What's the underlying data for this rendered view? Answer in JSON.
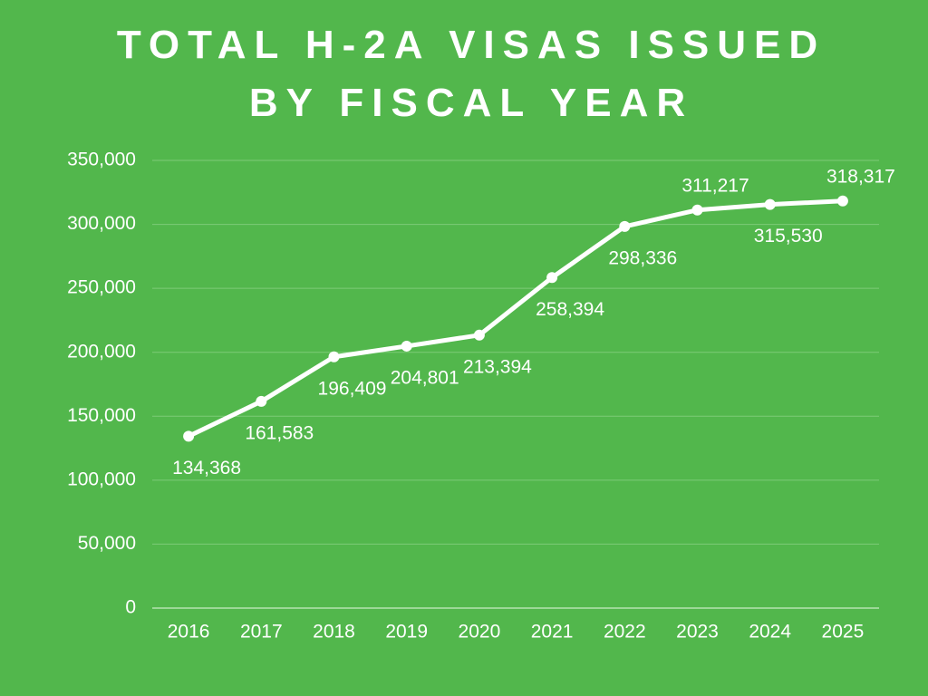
{
  "chart_data": {
    "type": "line",
    "title": "TOTAL H-2A VISAS ISSUED BY FISCAL YEAR",
    "categories": [
      "2016",
      "2017",
      "2018",
      "2019",
      "2020",
      "2021",
      "2022",
      "2023",
      "2024",
      "2025"
    ],
    "values": [
      134368,
      161583,
      196409,
      204801,
      213394,
      258394,
      298336,
      311217,
      315530,
      318317
    ],
    "value_labels": [
      "134,368",
      "161,583",
      "196,409",
      "204,801",
      "213,394",
      "258,394",
      "298,336",
      "311,217",
      "315,530",
      "318,317"
    ],
    "color": "#ffffff",
    "ylim": [
      0,
      350000
    ],
    "yticks": [
      0,
      {
        "value": 50000,
        "label": "50,000"
      },
      {
        "value": 100000,
        "label": "100,000"
      },
      {
        "value": 150000,
        "label": "150,000"
      },
      {
        "value": 200000,
        "label": "200,000"
      },
      {
        "value": 250000,
        "label": "250,000"
      },
      {
        "value": 300000,
        "label": "300,000"
      },
      {
        "value": 350000,
        "label": "350,000"
      }
    ],
    "grid": true
  }
}
